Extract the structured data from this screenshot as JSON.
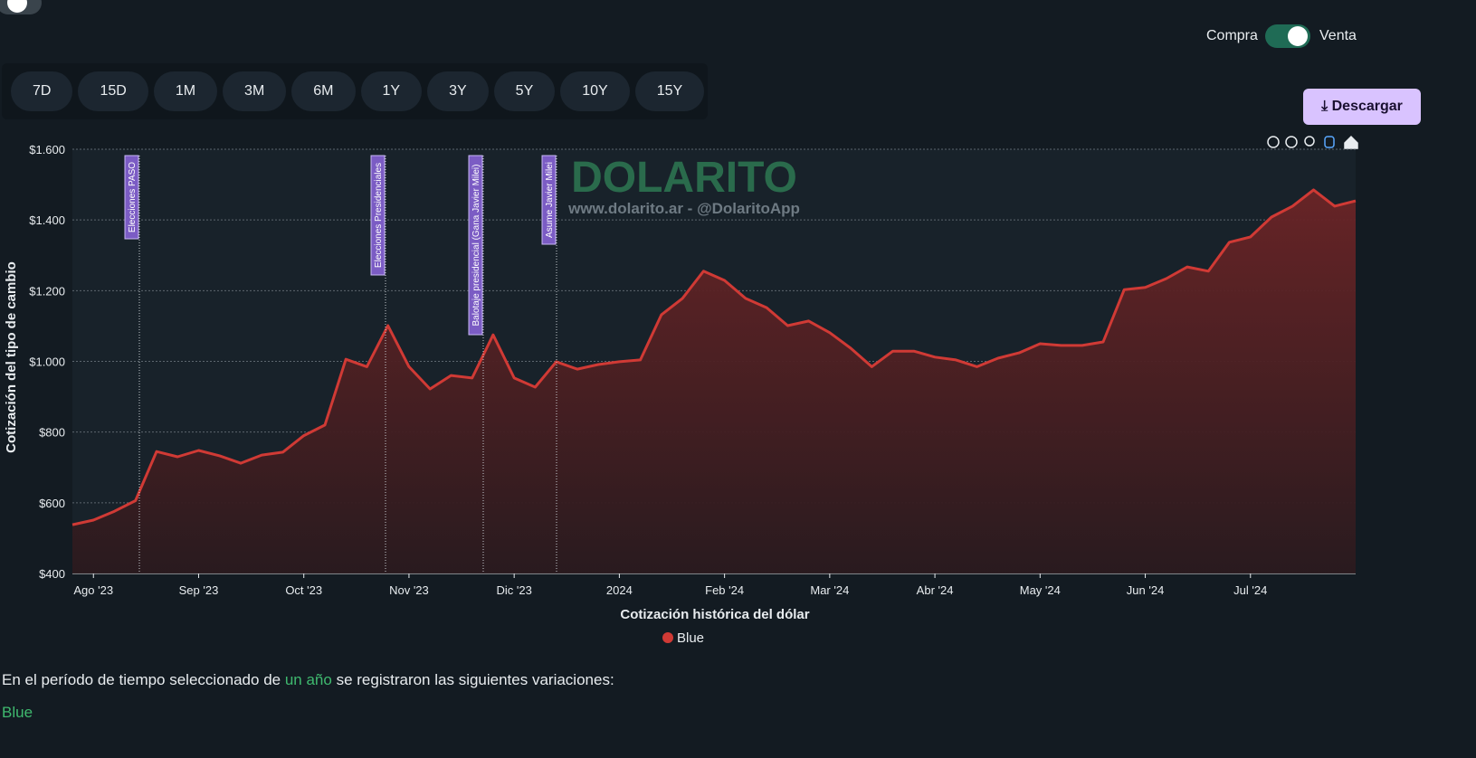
{
  "ui": {
    "compra": "Compra",
    "venta": "Venta",
    "periods": [
      "7D",
      "15D",
      "1M",
      "3M",
      "6M",
      "1Y",
      "3Y",
      "5Y",
      "10Y",
      "15Y"
    ],
    "download": "Descargar",
    "summary": {
      "before": "En el período de tiempo seleccionado de",
      "highlight": "un año",
      "after": "se registraron las siguientes variaciones:"
    },
    "series_heading": "Blue"
  },
  "chart_data": {
    "type": "area",
    "title": "Cotización histórica del dólar",
    "y_label": "Cotización del tipo de cambio",
    "watermark": "DOLARITO",
    "watermark_sub": "www.dolarito.ar - @DolaritoApp",
    "annotations": [
      "Elecciones PASO",
      "Elecciones Presidenciales",
      "Balotaje presidencial (Gana Javier Milei)",
      "Asume Javier Milei"
    ],
    "categories": [
      null,
      "Ago '23",
      null,
      null,
      null,
      null,
      "Sep '23",
      null,
      null,
      null,
      null,
      "Oct '23",
      null,
      null,
      null,
      null,
      "Nov '23",
      null,
      null,
      null,
      null,
      "Dic '23",
      null,
      null,
      null,
      null,
      "2024",
      null,
      null,
      null,
      null,
      "Feb '24",
      null,
      null,
      null,
      null,
      "Mar '24",
      null,
      null,
      null,
      null,
      "Abr '24",
      null,
      null,
      null,
      null,
      "May '24",
      null,
      null,
      null,
      null,
      "Jun '24",
      null,
      null,
      null,
      null,
      "Jul '24",
      null,
      null,
      null,
      null,
      null
    ],
    "series": [
      {
        "name": "Blue",
        "color": "#d03a35",
        "values": [
          538,
          551,
          576,
          606,
          745,
          730,
          748,
          733,
          712,
          735,
          743,
          790,
          820,
          1006,
          985,
          1101,
          985,
          922,
          960,
          953,
          1075,
          953,
          927,
          999,
          978,
          991,
          999,
          1004,
          1132,
          1178,
          1255,
          1229,
          1178,
          1152,
          1101,
          1114,
          1081,
          1037,
          985,
          1029,
          1029,
          1012,
          1004,
          985,
          1009,
          1024,
          1050,
          1045,
          1045,
          1055,
          1203,
          1209,
          1234,
          1267,
          1255,
          1337,
          1352,
          1408,
          1439,
          1485,
          1439,
          1454
        ]
      }
    ],
    "ylim": [
      400,
      1600
    ],
    "yticks": [
      {
        "value": 400,
        "label": "$400"
      },
      {
        "value": 600,
        "label": "$600"
      },
      {
        "value": 800,
        "label": "$800"
      },
      {
        "value": 1000,
        "label": "$1.000"
      },
      {
        "value": 1200,
        "label": "$1.200"
      },
      {
        "value": 1400,
        "label": "$1.400"
      },
      {
        "value": 1600,
        "label": "$1.600"
      }
    ],
    "grid": true
  }
}
